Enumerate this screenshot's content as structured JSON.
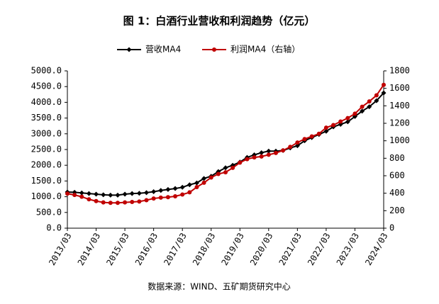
{
  "chart_data": {
    "type": "line",
    "title": "图 1：白酒行业营收和利润趋势（亿元）",
    "source": "数据来源：WIND、五矿期货研究中心",
    "categories": [
      "2013/03",
      null,
      null,
      null,
      "2014/03",
      null,
      null,
      null,
      "2015/03",
      null,
      null,
      null,
      "2016/03",
      null,
      null,
      null,
      "2017/03",
      null,
      null,
      null,
      "2018/03",
      null,
      null,
      null,
      "2019/03",
      null,
      null,
      null,
      "2020/03",
      null,
      null,
      null,
      "2021/03",
      null,
      null,
      null,
      "2022/03",
      null,
      null,
      null,
      "2023/03",
      null,
      null,
      null,
      "2024/03"
    ],
    "series": [
      {
        "name": "营收MA4",
        "color": "#000000",
        "marker": "diamond",
        "values": [
          1150,
          1140,
          1120,
          1100,
          1080,
          1060,
          1050,
          1050,
          1080,
          1100,
          1110,
          1130,
          1160,
          1200,
          1230,
          1260,
          1300,
          1380,
          1440,
          1580,
          1650,
          1800,
          1920,
          2000,
          2100,
          2250,
          2330,
          2400,
          2450,
          2450,
          2470,
          2550,
          2620,
          2780,
          2880,
          2980,
          3080,
          3220,
          3300,
          3380,
          3550,
          3720,
          3860,
          4050,
          4300
        ]
      },
      {
        "name": "利润MA4（右轴）",
        "color": "#c00000",
        "marker": "circle",
        "axis": "y2",
        "values": [
          395,
          380,
          360,
          330,
          310,
          295,
          290,
          290,
          295,
          300,
          305,
          320,
          340,
          350,
          355,
          365,
          385,
          410,
          470,
          520,
          580,
          620,
          640,
          690,
          750,
          790,
          810,
          820,
          840,
          860,
          890,
          930,
          980,
          1020,
          1050,
          1080,
          1150,
          1180,
          1220,
          1260,
          1310,
          1390,
          1450,
          1520,
          1640
        ]
      }
    ],
    "ylim": [
      0,
      5000
    ],
    "yticks": [
      {
        "value": 0,
        "label": "0.0"
      },
      {
        "value": 500,
        "label": "500.0"
      },
      {
        "value": 1000,
        "label": "1000.0"
      },
      {
        "value": 1500,
        "label": "1500.0"
      },
      {
        "value": 2000,
        "label": "2000.0"
      },
      {
        "value": 2500,
        "label": "2500.0"
      },
      {
        "value": 3000,
        "label": "3000.0"
      },
      {
        "value": 3500,
        "label": "3500.0"
      },
      {
        "value": 4000,
        "label": "4000.0"
      },
      {
        "value": 4500,
        "label": "4500.0"
      },
      {
        "value": 5000,
        "label": "5000.0"
      }
    ],
    "y2lim": [
      0,
      1800
    ],
    "y2ticks": [
      0,
      200,
      400,
      600,
      800,
      1000,
      1200,
      1400,
      1600,
      1800
    ],
    "grid": false,
    "legend": "top"
  }
}
